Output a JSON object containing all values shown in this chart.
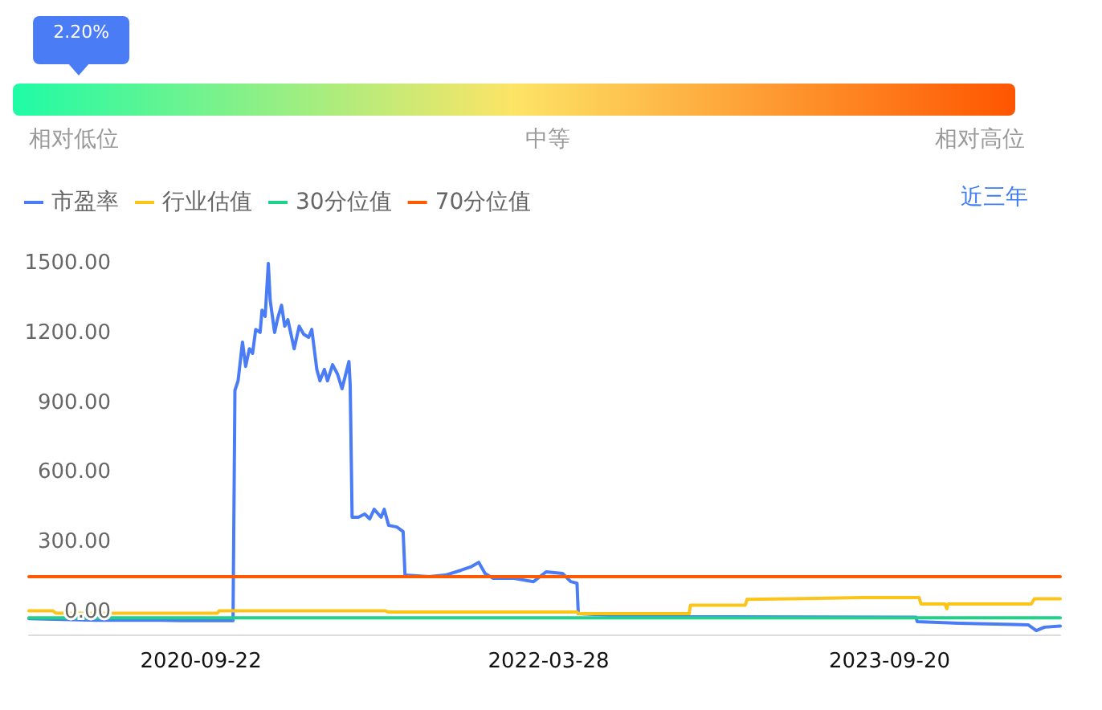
{
  "chart_data": [
    {
      "type": "other",
      "values": [
        2.2
      ],
      "value_labels": [
        "2.20%"
      ],
      "annotations": [
        "相对低位",
        "中等",
        "相对高位"
      ]
    },
    {
      "type": "line",
      "legend": "top left",
      "grid": false,
      "marker": "none",
      "line_style": "solid",
      "annotations": [
        "近三年"
      ],
      "xlim": [
        "2019-12-24",
        "2024-06-17"
      ],
      "xticks": [
        "2020-09-22",
        "2022-03-28",
        "2023-09-20"
      ],
      "ylim": [
        -100,
        1500
      ],
      "yticks": [
        {
          "value": 0,
          "label": "0.00"
        },
        {
          "value": 300,
          "label": "300.00"
        },
        {
          "value": 600,
          "label": "600.00"
        },
        {
          "value": 900,
          "label": "900.00"
        },
        {
          "value": 1200,
          "label": "1200.00"
        },
        {
          "value": 1500,
          "label": "1500.00"
        }
      ],
      "series": [
        {
          "name": "市盈率",
          "color": "#4a7cf6",
          "x": [
            "2019-12-24",
            "2020-04-09",
            "2020-07-20",
            "2020-08-22",
            "2020-11-12",
            "2020-11-15",
            "2020-11-20",
            "2020-11-27",
            "2020-12-02",
            "2020-12-08",
            "2020-12-13",
            "2020-12-18",
            "2020-12-25",
            "2020-12-28",
            "2021-01-02",
            "2021-01-07",
            "2021-01-10",
            "2021-01-17",
            "2021-01-22",
            "2021-01-28",
            "2021-02-02",
            "2021-02-07",
            "2021-02-17",
            "2021-02-25",
            "2021-03-04",
            "2021-03-12",
            "2021-03-17",
            "2021-03-25",
            "2021-03-30",
            "2021-04-06",
            "2021-04-11",
            "2021-04-19",
            "2021-04-27",
            "2021-05-04",
            "2021-05-15",
            "2021-05-17",
            "2021-05-20",
            "2021-05-30",
            "2021-06-09",
            "2021-06-17",
            "2021-06-24",
            "2021-07-05",
            "2021-07-10",
            "2021-07-17",
            "2021-07-30",
            "2021-08-09",
            "2021-08-12",
            "2021-09-19",
            "2021-10-15",
            "2021-11-09",
            "2021-11-24",
            "2021-12-07",
            "2021-12-17",
            "2021-12-30",
            "2022-02-01",
            "2022-03-04",
            "2022-03-24",
            "2022-04-19",
            "2022-05-02",
            "2022-05-12",
            "2022-05-14",
            "2022-08-24",
            "2023-11-01",
            "2023-11-03",
            "2024-01-09",
            "2024-04-27",
            "2024-05-10",
            "2024-05-23",
            "2024-06-17"
          ],
          "values": [
            -28,
            -35,
            -35,
            -37,
            -37,
            954,
            995,
            1161,
            1057,
            1133,
            1113,
            1216,
            1203,
            1299,
            1272,
            1500,
            1341,
            1203,
            1265,
            1320,
            1230,
            1258,
            1133,
            1230,
            1196,
            1182,
            1216,
            1044,
            995,
            1044,
            995,
            1064,
            1023,
            961,
            1078,
            974,
            408,
            408,
            422,
            401,
            442,
            408,
            442,
            373,
            366,
            346,
            159,
            152,
            159,
            180,
            194,
            214,
            166,
            145,
            145,
            131,
            173,
            166,
            131,
            124,
            -7,
            -20,
            -22,
            -41,
            -48,
            -55,
            -80,
            -65,
            -60
          ]
        },
        {
          "name": "行业估值",
          "color": "#fcc419",
          "x": [
            "2019-12-24",
            "2020-01-31",
            "2020-02-05",
            "2020-10-18",
            "2020-10-21",
            "2021-07-12",
            "2021-07-17",
            "2022-05-12",
            "2022-05-14",
            "2022-11-06",
            "2022-11-08",
            "2023-02-03",
            "2023-02-06",
            "2023-08-09",
            "2023-11-06",
            "2023-11-09",
            "2023-12-17",
            "2023-12-20",
            "2023-12-22",
            "2024-05-02",
            "2024-05-07",
            "2024-06-17"
          ],
          "values": [
            5,
            5,
            -5,
            -5,
            5,
            5,
            0,
            0,
            -7,
            -7,
            30,
            30,
            55,
            62,
            62,
            35,
            35,
            14,
            35,
            35,
            57,
            57
          ]
        },
        {
          "name": "30分位值",
          "color": "#1fd189",
          "x": [
            "2019-12-24",
            "2024-06-17"
          ],
          "values": [
            -25,
            -25
          ]
        },
        {
          "name": "70分位值",
          "color": "#ff5a00",
          "x": [
            "2019-12-24",
            "2024-06-17"
          ],
          "values": [
            152,
            152
          ]
        }
      ]
    }
  ]
}
